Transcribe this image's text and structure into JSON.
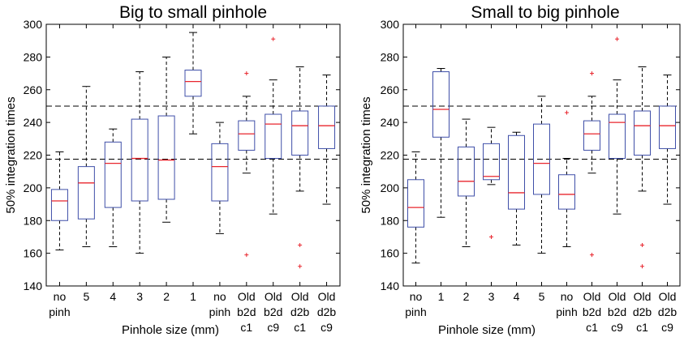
{
  "chart_data": [
    {
      "type": "box",
      "title": "Big to small pinhole",
      "xlabel": "Pinhole size (mm)",
      "ylabel": "50% integration times",
      "ylim": [
        140,
        300
      ],
      "yticks": [
        140,
        160,
        180,
        200,
        220,
        240,
        260,
        280,
        300
      ],
      "reference_lines": [
        217.5,
        250
      ],
      "categories": [
        [
          "no",
          "pinh"
        ],
        [
          "5"
        ],
        [
          "4"
        ],
        [
          "3"
        ],
        [
          "2"
        ],
        [
          "1"
        ],
        [
          "no",
          "pinh"
        ],
        [
          "Old",
          "b2d",
          "c1"
        ],
        [
          "Old",
          "b2d",
          "c9"
        ],
        [
          "Old",
          "d2b",
          "c1"
        ],
        [
          "Old",
          "d2b",
          "c9"
        ]
      ],
      "boxes": [
        {
          "whisker_low": 162,
          "q1": 180,
          "median": 192,
          "q3": 199,
          "whisker_high": 222,
          "outliers": []
        },
        {
          "whisker_low": 164,
          "q1": 181,
          "median": 203,
          "q3": 213,
          "whisker_high": 262,
          "outliers": []
        },
        {
          "whisker_low": 164,
          "q1": 188,
          "median": 215,
          "q3": 228,
          "whisker_high": 236,
          "outliers": []
        },
        {
          "whisker_low": 160,
          "q1": 192,
          "median": 218,
          "q3": 242,
          "whisker_high": 271,
          "outliers": []
        },
        {
          "whisker_low": 179,
          "q1": 193,
          "median": 217,
          "q3": 244,
          "whisker_high": 280,
          "outliers": []
        },
        {
          "whisker_low": 233,
          "q1": 256,
          "median": 265,
          "q3": 272,
          "whisker_high": 295,
          "outliers": []
        },
        {
          "whisker_low": 172,
          "q1": 192,
          "median": 213,
          "q3": 227,
          "whisker_high": 240,
          "outliers": []
        },
        {
          "whisker_low": 209,
          "q1": 223,
          "median": 233,
          "q3": 241,
          "whisker_high": 256,
          "outliers": [
            270,
            159
          ]
        },
        {
          "whisker_low": 184,
          "q1": 218,
          "median": 239,
          "q3": 245,
          "whisker_high": 266,
          "outliers": [
            291
          ]
        },
        {
          "whisker_low": 198,
          "q1": 220,
          "median": 238,
          "q3": 247,
          "whisker_high": 274,
          "outliers": [
            165,
            152
          ]
        },
        {
          "whisker_low": 190,
          "q1": 224,
          "median": 238,
          "q3": 250,
          "whisker_high": 269,
          "outliers": []
        }
      ]
    },
    {
      "type": "box",
      "title": "Small to big pinhole",
      "xlabel": "Pinhole size (mm)",
      "ylabel": "50% integration times",
      "ylim": [
        140,
        300
      ],
      "yticks": [
        140,
        160,
        180,
        200,
        220,
        240,
        260,
        280,
        300
      ],
      "reference_lines": [
        217.5,
        250
      ],
      "categories": [
        [
          "no",
          "pinh"
        ],
        [
          "1"
        ],
        [
          "2"
        ],
        [
          "3"
        ],
        [
          "4"
        ],
        [
          "5"
        ],
        [
          "no",
          "pinh"
        ],
        [
          "Old",
          "b2d",
          "c1"
        ],
        [
          "Old",
          "b2d",
          "c9"
        ],
        [
          "Old",
          "d2b",
          "c1"
        ],
        [
          "Old",
          "d2b",
          "c9"
        ]
      ],
      "boxes": [
        {
          "whisker_low": 154,
          "q1": 176,
          "median": 188,
          "q3": 205,
          "whisker_high": 222,
          "outliers": []
        },
        {
          "whisker_low": 182,
          "q1": 231,
          "median": 248,
          "q3": 271,
          "whisker_high": 273,
          "outliers": []
        },
        {
          "whisker_low": 164,
          "q1": 195,
          "median": 204,
          "q3": 225,
          "whisker_high": 242,
          "outliers": []
        },
        {
          "whisker_low": 202,
          "q1": 205,
          "median": 207,
          "q3": 227,
          "whisker_high": 237,
          "outliers": [
            170
          ]
        },
        {
          "whisker_low": 165,
          "q1": 187,
          "median": 197,
          "q3": 232,
          "whisker_high": 234,
          "outliers": []
        },
        {
          "whisker_low": 160,
          "q1": 196,
          "median": 215,
          "q3": 239,
          "whisker_high": 256,
          "outliers": []
        },
        {
          "whisker_low": 164,
          "q1": 187,
          "median": 196,
          "q3": 208,
          "whisker_high": 218,
          "outliers": [
            246
          ]
        },
        {
          "whisker_low": 209,
          "q1": 223,
          "median": 233,
          "q3": 241,
          "whisker_high": 256,
          "outliers": [
            270,
            159
          ]
        },
        {
          "whisker_low": 184,
          "q1": 218,
          "median": 240,
          "q3": 245,
          "whisker_high": 266,
          "outliers": [
            291
          ]
        },
        {
          "whisker_low": 198,
          "q1": 220,
          "median": 238,
          "q3": 247,
          "whisker_high": 274,
          "outliers": [
            165,
            152
          ]
        },
        {
          "whisker_low": 190,
          "q1": 224,
          "median": 238,
          "q3": 250,
          "whisker_high": 269,
          "outliers": []
        }
      ]
    }
  ],
  "style": {
    "box_color": "#3f4fa8",
    "median_color": "#e8262e",
    "outlier_color": "#e8262e",
    "whisker_color": "#000000",
    "axis_color": "#000000"
  }
}
